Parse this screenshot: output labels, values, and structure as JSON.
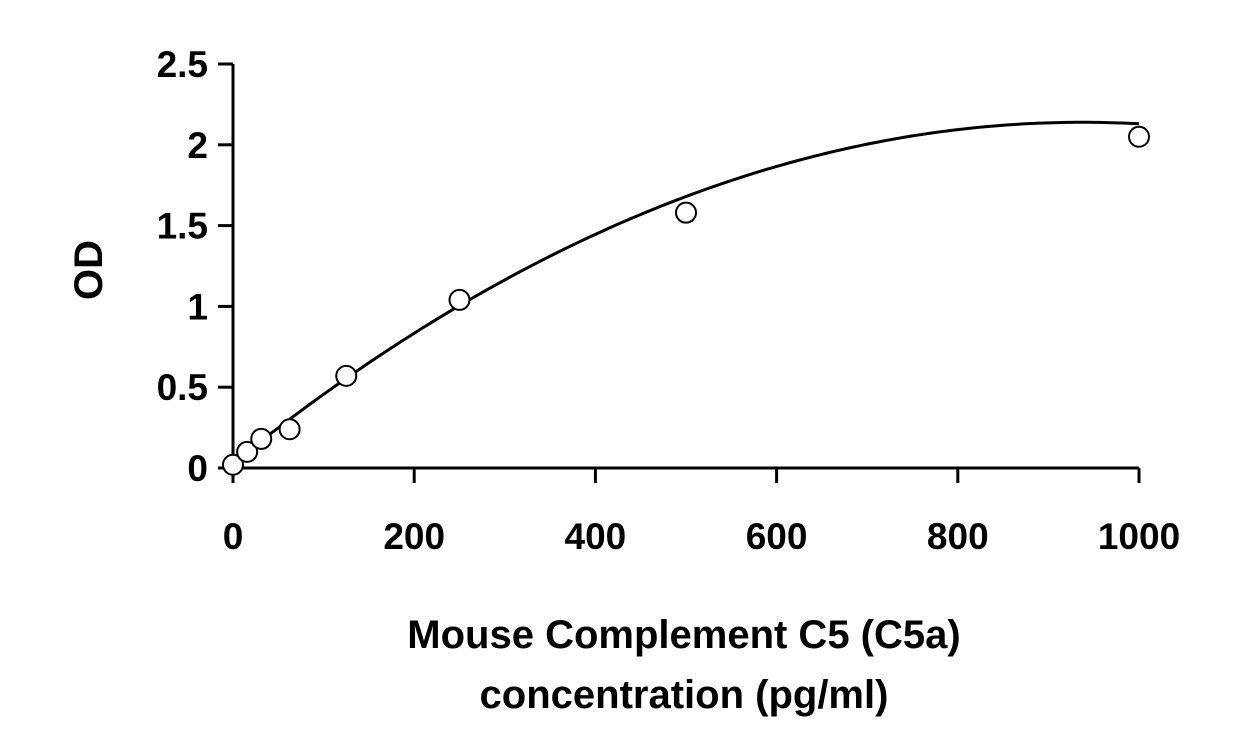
{
  "chart_data": {
    "type": "scatter",
    "title": "",
    "xlabel_lines": [
      "Mouse Complement C5 (C5a)",
      "concentration (pg/ml)"
    ],
    "ylabel": "OD",
    "xlim": [
      0,
      1000
    ],
    "ylim": [
      0,
      2.5
    ],
    "x_ticks": [
      0,
      200,
      400,
      600,
      800,
      1000
    ],
    "x_tick_labels": [
      "0",
      "200",
      "400",
      "600",
      "800",
      "1000"
    ],
    "y_ticks": [
      0,
      0.5,
      1,
      1.5,
      2,
      2.5
    ],
    "y_tick_labels": [
      "0",
      "0.5",
      "1",
      "1.5",
      "2",
      "2.5"
    ],
    "grid": false,
    "legend": "none",
    "series": [
      {
        "marker": "open-circle",
        "x": [
          0,
          15.6,
          31.2,
          62.5,
          125,
          250,
          500,
          1000
        ],
        "y": [
          0.02,
          0.1,
          0.18,
          0.24,
          0.57,
          1.04,
          1.58,
          2.05
        ]
      }
    ],
    "trendline": {
      "type": "polynomial",
      "coefficients": [
        0.03,
        0.0045,
        -2.4e-06
      ]
    },
    "colors": {
      "axis": "#000000",
      "marker_stroke": "#000000",
      "marker_fill": "#ffffff",
      "line": "#000000"
    }
  }
}
